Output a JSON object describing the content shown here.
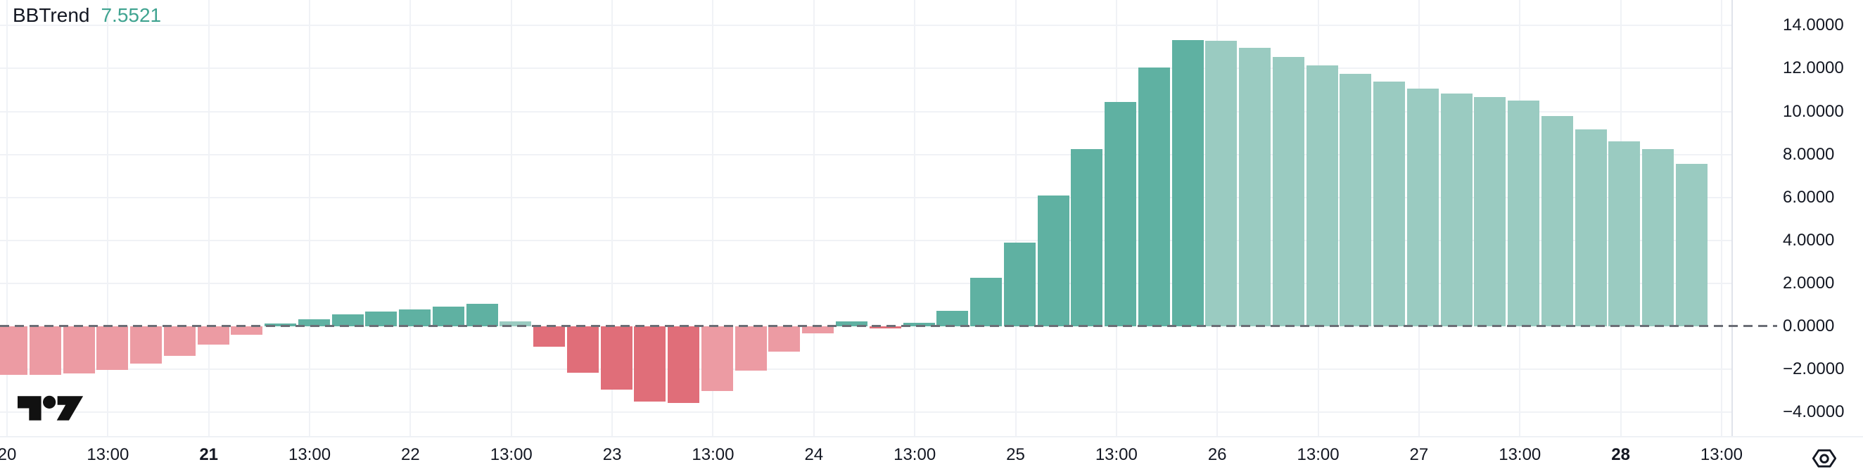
{
  "header": {
    "indicator_name": "BBTrend",
    "indicator_value": "7.5521"
  },
  "icons": {
    "settings": "hex-nut-gear",
    "logo": "tradingview-mark"
  },
  "colors": {
    "background": "#ffffff",
    "text": "#131722",
    "value_accent": "#3FA390",
    "grid": "#f0f2f6",
    "axis_border": "#e0e3eb",
    "zero_line": "#6B6E76",
    "up_strong": "#5FB1A2",
    "up_fade": "#9ACBC1",
    "down_strong": "#E06E79",
    "down_fade": "#EC9BA3"
  },
  "chart_data": {
    "type": "bar",
    "title": "BBTrend",
    "current_value": 7.5521,
    "xlabel": "",
    "ylabel": "",
    "ylim": [
      -5.1,
      15.2
    ],
    "grid": true,
    "legend_position": "top-left",
    "zero_line": 0,
    "y_ticks": [
      {
        "value": 14,
        "label": "14.0000"
      },
      {
        "value": 12,
        "label": "12.0000"
      },
      {
        "value": 10,
        "label": "10.0000"
      },
      {
        "value": 8,
        "label": "8.0000"
      },
      {
        "value": 6,
        "label": "6.0000"
      },
      {
        "value": 4,
        "label": "4.0000"
      },
      {
        "value": 2,
        "label": "2.0000"
      },
      {
        "value": 0,
        "label": "0.0000"
      },
      {
        "value": -2,
        "label": "−2.0000"
      },
      {
        "value": -4,
        "label": "−4.0000"
      }
    ],
    "x_ticks": [
      {
        "label": "20",
        "bold": false
      },
      {
        "label": "13:00",
        "bold": false
      },
      {
        "label": "21",
        "bold": true
      },
      {
        "label": "13:00",
        "bold": false
      },
      {
        "label": "22",
        "bold": false
      },
      {
        "label": "13:00",
        "bold": false
      },
      {
        "label": "23",
        "bold": false
      },
      {
        "label": "13:00",
        "bold": false
      },
      {
        "label": "24",
        "bold": false
      },
      {
        "label": "13:00",
        "bold": false
      },
      {
        "label": "25",
        "bold": false
      },
      {
        "label": "13:00",
        "bold": false
      },
      {
        "label": "26",
        "bold": false
      },
      {
        "label": "13:00",
        "bold": false
      },
      {
        "label": "27",
        "bold": false
      },
      {
        "label": "13:00",
        "bold": false
      },
      {
        "label": "28",
        "bold": true
      },
      {
        "label": "13:00",
        "bold": false
      }
    ],
    "color_key": {
      "us": "positive rising (dark teal)",
      "uf": "positive falling (light teal)",
      "ds": "negative falling (dark red)",
      "dw": "negative rising (light pink)"
    },
    "bars": [
      {
        "v": -2.26,
        "c": "dw"
      },
      {
        "v": -2.26,
        "c": "dw"
      },
      {
        "v": -2.2,
        "c": "dw"
      },
      {
        "v": -2.02,
        "c": "dw"
      },
      {
        "v": -1.75,
        "c": "dw"
      },
      {
        "v": -1.38,
        "c": "dw"
      },
      {
        "v": -0.85,
        "c": "dw"
      },
      {
        "v": -0.38,
        "c": "dw"
      },
      {
        "v": 0.14,
        "c": "us"
      },
      {
        "v": 0.34,
        "c": "us"
      },
      {
        "v": 0.56,
        "c": "us"
      },
      {
        "v": 0.68,
        "c": "us"
      },
      {
        "v": 0.8,
        "c": "us"
      },
      {
        "v": 0.92,
        "c": "us"
      },
      {
        "v": 1.05,
        "c": "us"
      },
      {
        "v": 0.22,
        "c": "uf"
      },
      {
        "v": -0.95,
        "c": "ds"
      },
      {
        "v": -2.15,
        "c": "ds"
      },
      {
        "v": -2.95,
        "c": "ds"
      },
      {
        "v": -3.5,
        "c": "ds"
      },
      {
        "v": -3.58,
        "c": "ds"
      },
      {
        "v": -3.0,
        "c": "dw"
      },
      {
        "v": -2.05,
        "c": "dw"
      },
      {
        "v": -1.18,
        "c": "dw"
      },
      {
        "v": -0.32,
        "c": "dw"
      },
      {
        "v": 0.22,
        "c": "us"
      },
      {
        "v": -0.1,
        "c": "ds"
      },
      {
        "v": 0.15,
        "c": "us"
      },
      {
        "v": 0.72,
        "c": "us"
      },
      {
        "v": 2.25,
        "c": "us"
      },
      {
        "v": 3.9,
        "c": "us"
      },
      {
        "v": 6.1,
        "c": "us"
      },
      {
        "v": 8.25,
        "c": "us"
      },
      {
        "v": 10.45,
        "c": "us"
      },
      {
        "v": 12.05,
        "c": "us"
      },
      {
        "v": 13.32,
        "c": "us"
      },
      {
        "v": 13.28,
        "c": "uf"
      },
      {
        "v": 12.95,
        "c": "uf"
      },
      {
        "v": 12.55,
        "c": "uf"
      },
      {
        "v": 12.15,
        "c": "uf"
      },
      {
        "v": 11.75,
        "c": "uf"
      },
      {
        "v": 11.4,
        "c": "uf"
      },
      {
        "v": 11.05,
        "c": "uf"
      },
      {
        "v": 10.82,
        "c": "uf"
      },
      {
        "v": 10.68,
        "c": "uf"
      },
      {
        "v": 10.52,
        "c": "uf"
      },
      {
        "v": 9.8,
        "c": "uf"
      },
      {
        "v": 9.15,
        "c": "uf"
      },
      {
        "v": 8.6,
        "c": "uf"
      },
      {
        "v": 8.25,
        "c": "uf"
      },
      {
        "v": 7.5521,
        "c": "uf"
      }
    ]
  }
}
